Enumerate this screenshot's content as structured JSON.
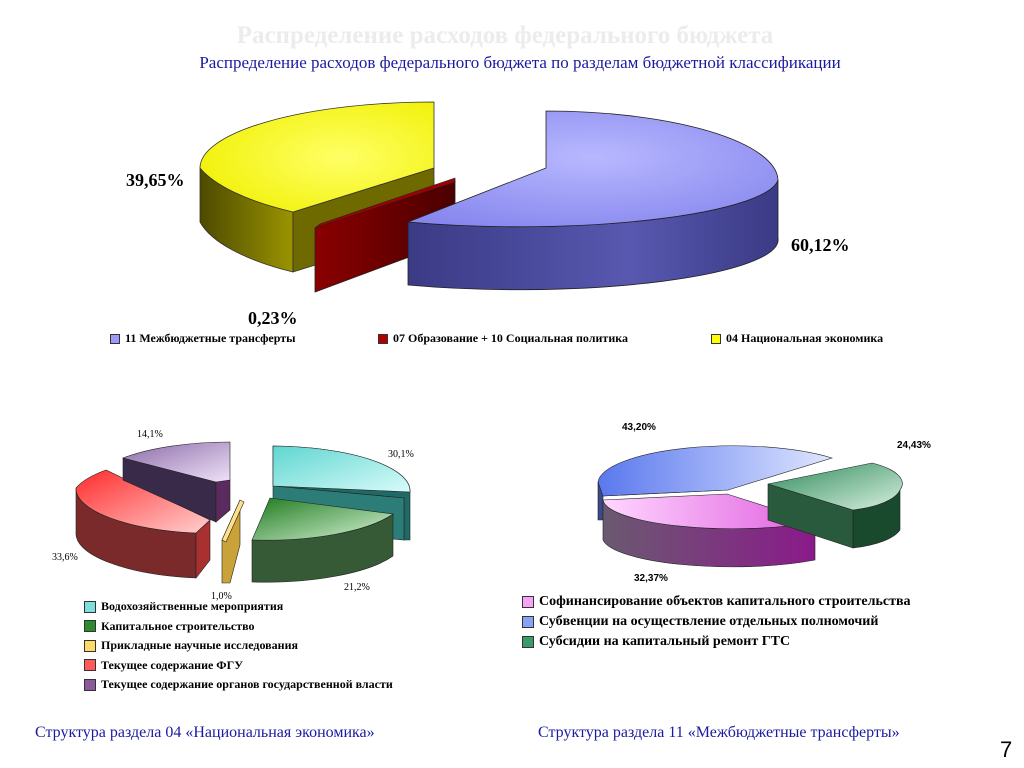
{
  "ghost_title": "Распределение расходов федерального бюджета",
  "subtitle": "Распределение расходов федерального бюджета по разделам бюджетной классификации",
  "colors": {
    "title_blue": "#1a1aa0",
    "periwinkle": "#9b9bf5",
    "dark_red": "#7a0000",
    "yellow": "#ffff00",
    "teal": "#7ee0dd",
    "green": "#2e8b2e",
    "tan": "#ffd966",
    "red": "#ff5a5a",
    "purple": "#b39bc9",
    "pink": "#f5a3f5",
    "light_blue": "#8aa4f5",
    "sea_green": "#3a9a6a"
  },
  "chart_data": [
    {
      "type": "pie",
      "title": "Распределение расходов федерального бюджета по разделам бюджетной классификации",
      "labels": [
        "11 Межбюджетные трансферты",
        "07 Образование + 10 Социальная политика",
        "04 Национальная экономика"
      ],
      "values": [
        60.12,
        0.23,
        39.65
      ],
      "data_labels": [
        "60,12%",
        "0,23%",
        "39,65%"
      ],
      "legend_position": "bottom"
    },
    {
      "type": "pie",
      "title": "",
      "caption": "Структура раздела 04 «Национальная экономика»",
      "labels": [
        "Водохозяйственные мероприятия",
        "Капитальное строительство",
        "Прикладные научные исследования",
        "Текущее содержание ФГУ",
        "Текущее содержание органов государственной власти"
      ],
      "values": [
        30.1,
        21.2,
        1.0,
        33.6,
        14.1
      ],
      "data_labels": [
        "30,1%",
        "21,2%",
        "1,0%",
        "33,6%",
        "14,1%"
      ],
      "legend_position": "bottom"
    },
    {
      "type": "pie",
      "title": "",
      "caption": "Структура раздела 11 «Межбюджетные трансферты»",
      "labels": [
        "Софинансирование объектов капитального строительства",
        "Субвенции на осуществление отдельных полномочий",
        "Субсидии на капитальный ремонт ГТС"
      ],
      "values": [
        32.37,
        43.2,
        24.43
      ],
      "data_labels": [
        "32,37%",
        "43,20%",
        "24,43%"
      ],
      "legend_position": "bottom"
    }
  ],
  "captions": {
    "left": "Структура раздела 04 «Национальная экономика»",
    "right": "Структура раздела 11 «Межбюджетные трансферты»"
  },
  "page_number": "7"
}
